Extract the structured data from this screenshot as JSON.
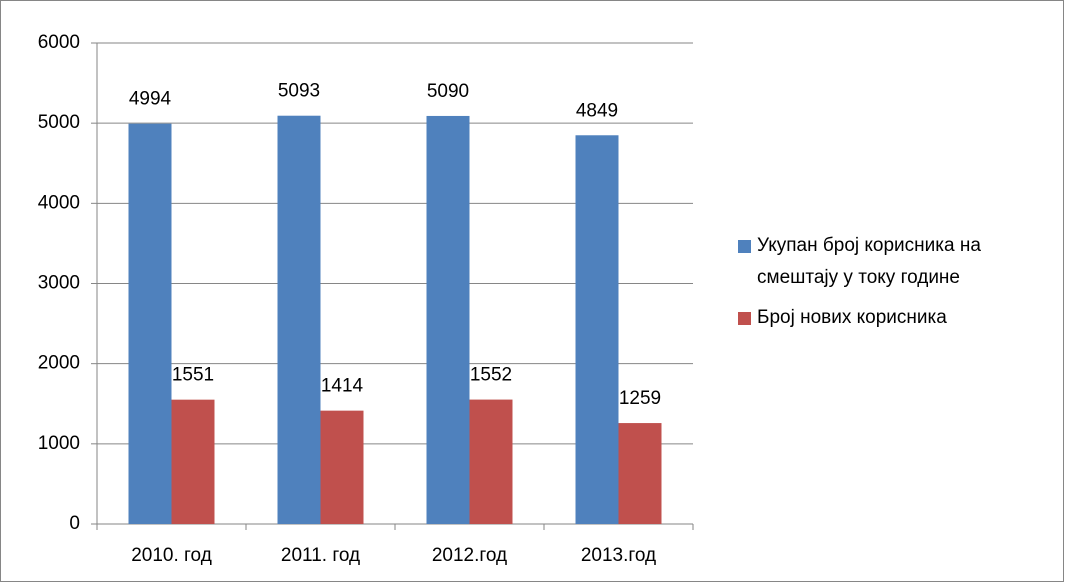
{
  "chart_data": {
    "type": "bar",
    "categories": [
      "2010. год",
      "2011. год",
      "2012.год",
      "2013.год"
    ],
    "series": [
      {
        "name": "Укупан број корисника на смештају у току године",
        "color": "#4f81bd",
        "values": [
          4994,
          5093,
          5090,
          4849
        ]
      },
      {
        "name": "Број нових корисника",
        "color": "#c0504d",
        "values": [
          1551,
          1414,
          1552,
          1259
        ]
      }
    ],
    "ylim": [
      0,
      6000
    ],
    "yticks": [
      0,
      1000,
      2000,
      3000,
      4000,
      5000,
      6000
    ],
    "grid": true,
    "legend": "right"
  }
}
